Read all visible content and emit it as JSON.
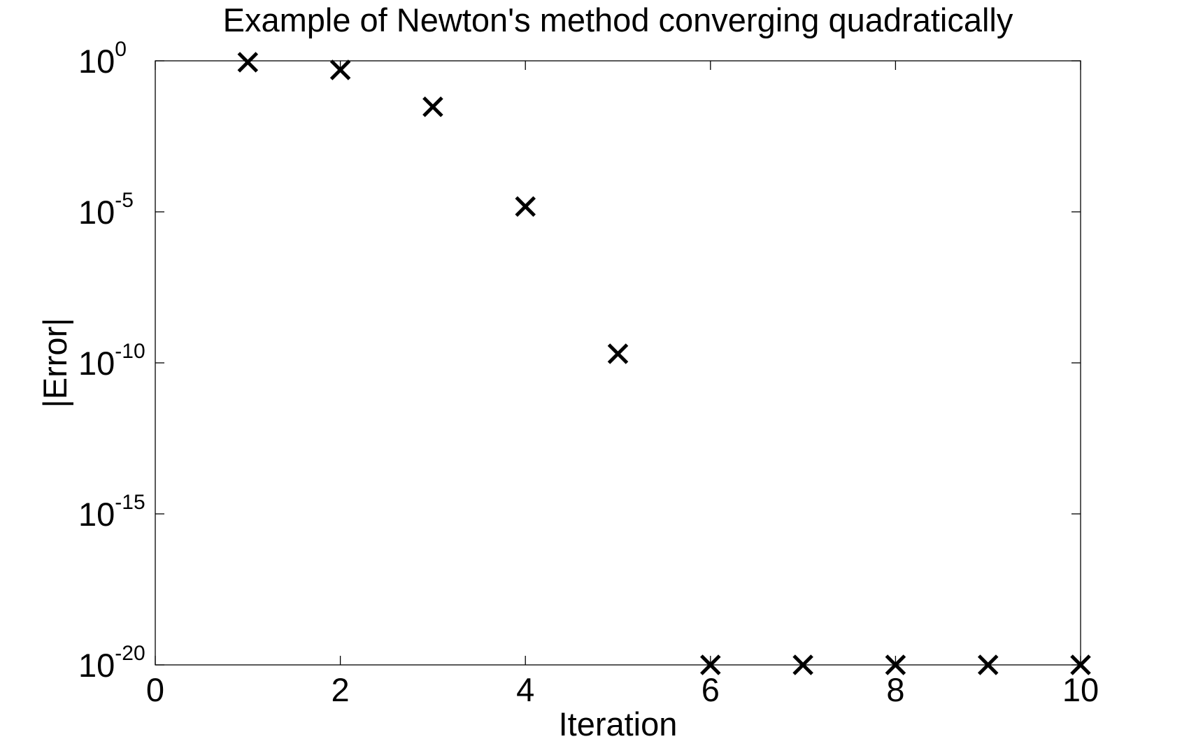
{
  "chart_data": {
    "type": "scatter",
    "title": "Example of Newton's method converging quadratically",
    "xlabel": "Iteration",
    "ylabel": "|Error|",
    "xlim": [
      0,
      10
    ],
    "x_ticks": [
      0,
      2,
      4,
      6,
      8,
      10
    ],
    "y_scale": "log",
    "ylim": [
      1e-20,
      1
    ],
    "y_tick_exponents": [
      0,
      -5,
      -10,
      -15,
      -20
    ],
    "y_tick_base": "10",
    "grid": false,
    "legend": "none",
    "marker": "x",
    "marker_color": "#000000",
    "series": [
      {
        "x": [
          1,
          2,
          3,
          4,
          5,
          6,
          7,
          8,
          9,
          10
        ],
        "y": [
          0.9,
          0.5,
          0.03,
          1.5e-05,
          2e-10,
          1e-20,
          1e-20,
          1e-20,
          1e-20,
          1e-20
        ]
      }
    ]
  }
}
